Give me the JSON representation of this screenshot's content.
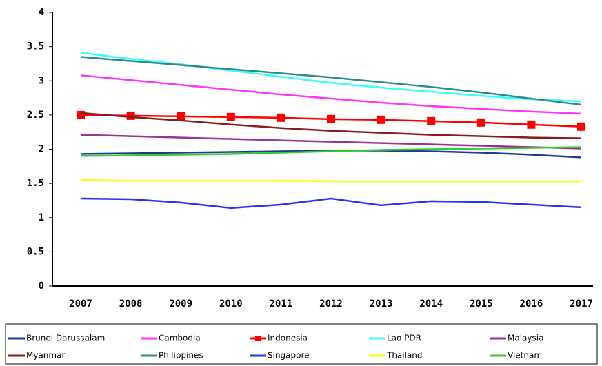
{
  "chart_data": {
    "type": "line",
    "categories": [
      "2007",
      "2008",
      "2009",
      "2010",
      "2011",
      "2012",
      "2013",
      "2014",
      "2015",
      "2016",
      "2017"
    ],
    "ylim": [
      0,
      4
    ],
    "yticks": [
      0,
      0.5,
      1,
      1.5,
      2,
      2.5,
      3,
      3.5,
      4
    ],
    "legend": "bottom",
    "series": [
      {
        "name": "Brunei Darussalam",
        "color": "#1f3a93",
        "values": [
          1.93,
          1.94,
          1.95,
          1.96,
          1.97,
          1.98,
          1.98,
          1.97,
          1.95,
          1.92,
          1.88
        ]
      },
      {
        "name": "Cambodia",
        "color": "#ff33ff",
        "values": [
          3.08,
          3.01,
          2.94,
          2.87,
          2.8,
          2.74,
          2.68,
          2.63,
          2.59,
          2.55,
          2.52
        ]
      },
      {
        "name": "Indonesia",
        "color": "#ff0000",
        "marker": "square",
        "values": [
          2.5,
          2.49,
          2.48,
          2.47,
          2.46,
          2.44,
          2.43,
          2.41,
          2.39,
          2.36,
          2.33
        ]
      },
      {
        "name": "Lao PDR",
        "color": "#33ffff",
        "values": [
          3.41,
          3.32,
          3.24,
          3.15,
          3.06,
          2.97,
          2.9,
          2.84,
          2.78,
          2.73,
          2.7
        ]
      },
      {
        "name": "Malaysia",
        "color": "#993399",
        "values": [
          2.21,
          2.19,
          2.17,
          2.15,
          2.13,
          2.11,
          2.09,
          2.07,
          2.05,
          2.03,
          2.01
        ]
      },
      {
        "name": "Myanmar",
        "color": "#8b1a1a",
        "values": [
          2.53,
          2.47,
          2.42,
          2.36,
          2.31,
          2.27,
          2.24,
          2.21,
          2.19,
          2.17,
          2.16
        ]
      },
      {
        "name": "Philippines",
        "color": "#2e8b8b",
        "values": [
          3.35,
          3.29,
          3.23,
          3.17,
          3.11,
          3.05,
          2.98,
          2.91,
          2.83,
          2.74,
          2.65
        ]
      },
      {
        "name": "Singapore",
        "color": "#2233ff",
        "values": [
          1.28,
          1.27,
          1.22,
          1.14,
          1.19,
          1.28,
          1.18,
          1.24,
          1.23,
          1.19,
          1.15
        ]
      },
      {
        "name": "Thailand",
        "color": "#ffff00",
        "values": [
          1.55,
          1.54,
          1.54,
          1.54,
          1.54,
          1.53,
          1.53,
          1.53,
          1.53,
          1.53,
          1.53
        ]
      },
      {
        "name": "Vietnam",
        "color": "#33cc33",
        "values": [
          1.9,
          1.91,
          1.92,
          1.93,
          1.95,
          1.97,
          1.99,
          2.0,
          2.01,
          2.02,
          2.03
        ]
      }
    ]
  }
}
